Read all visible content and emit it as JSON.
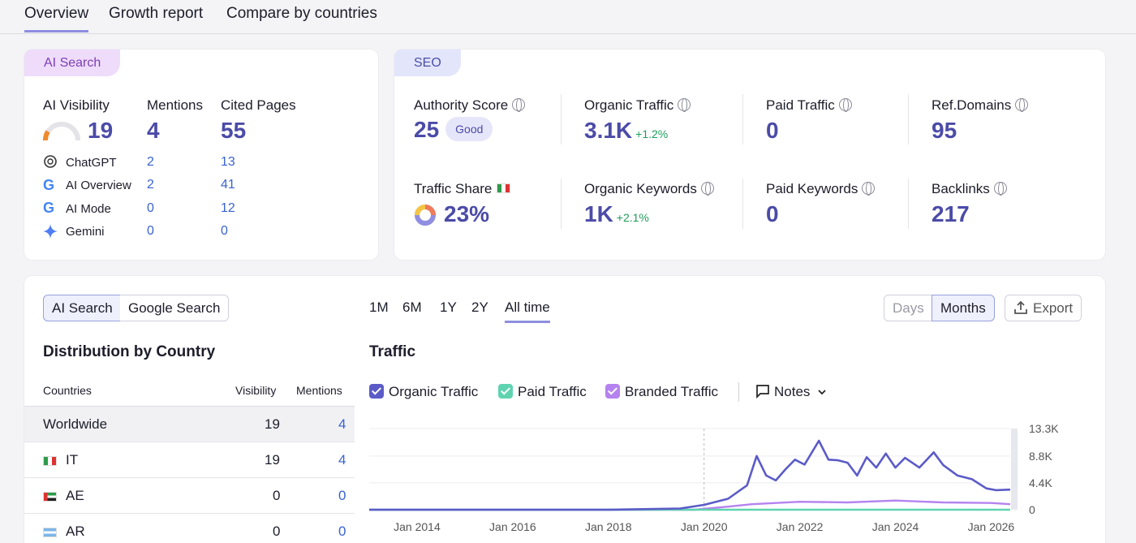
{
  "tabs": [
    "Overview",
    "Growth report",
    "Compare by countries"
  ],
  "ai_card": {
    "badge": "AI Search",
    "visibility_label": "AI Visibility",
    "visibility_value": "19",
    "mentions_label": "Mentions",
    "mentions_value": "4",
    "cited_label": "Cited Pages",
    "cited_value": "55",
    "sources": [
      {
        "name": "ChatGPT",
        "icon": "chatgpt-icon",
        "mentions": "2",
        "cited": "13"
      },
      {
        "name": "AI Overview",
        "icon": "google-icon",
        "mentions": "2",
        "cited": "41"
      },
      {
        "name": "AI Mode",
        "icon": "google-icon",
        "mentions": "0",
        "cited": "12"
      },
      {
        "name": "Gemini",
        "icon": "gemini-icon",
        "mentions": "0",
        "cited": "0"
      }
    ]
  },
  "seo_card": {
    "badge": "SEO",
    "authority_label": "Authority Score",
    "authority_value": "25",
    "authority_badge": "Good",
    "organic_traffic_label": "Organic Traffic",
    "organic_traffic_value": "3.1K",
    "organic_traffic_delta": "+1.2%",
    "paid_traffic_label": "Paid Traffic",
    "paid_traffic_value": "0",
    "refdomains_label": "Ref.Domains",
    "refdomains_value": "95",
    "traffic_share_label": "Traffic Share",
    "traffic_share_value": "23%",
    "organic_keywords_label": "Organic Keywords",
    "organic_keywords_value": "1K",
    "organic_keywords_delta": "+2.1%",
    "paid_keywords_label": "Paid Keywords",
    "paid_keywords_value": "0",
    "backlinks_label": "Backlinks",
    "backlinks_value": "217"
  },
  "bottom": {
    "source_toggle": [
      "AI Search",
      "Google Search"
    ],
    "periods": [
      "1M",
      "6M",
      "1Y",
      "2Y",
      "All time"
    ],
    "granularity": [
      "Days",
      "Months"
    ],
    "export_label": "Export",
    "distribution_title": "Distribution by Country",
    "columns": [
      "Countries",
      "Visibility",
      "Mentions"
    ],
    "rows": [
      {
        "country": "Worldwide",
        "flag": "",
        "visibility": "19",
        "mentions": "4"
      },
      {
        "country": "IT",
        "flag": "it-flag",
        "visibility": "19",
        "mentions": "4"
      },
      {
        "country": "AE",
        "flag": "ae-flag",
        "visibility": "0",
        "mentions": "0"
      },
      {
        "country": "AR",
        "flag": "ar-flag",
        "visibility": "0",
        "mentions": "0"
      }
    ],
    "traffic_title": "Traffic",
    "legend": [
      "Organic Traffic",
      "Paid Traffic",
      "Branded Traffic"
    ],
    "notes_label": "Notes"
  },
  "colors": {
    "organic": "#5b5bc8",
    "paid": "#5fd3b0",
    "branded": "#b583ef",
    "accent": "#8f8ee0"
  },
  "chart_data": {
    "type": "line",
    "title": "Traffic",
    "x_ticks": [
      "Jan 2014",
      "Jan 2016",
      "Jan 2018",
      "Jan 2020",
      "Jan 2022",
      "Jan 2024",
      "Jan 2026"
    ],
    "y_ticks": [
      "0",
      "4.4K",
      "8.8K",
      "13.3K"
    ],
    "ylim": [
      0,
      13300
    ],
    "grid": true,
    "series": [
      {
        "name": "Organic Traffic",
        "x": [
          2013.0,
          2018.0,
          2019.5,
          2020.0,
          2020.5,
          2020.9,
          2021.1,
          2021.3,
          2021.5,
          2021.7,
          2021.9,
          2022.1,
          2022.4,
          2022.6,
          2022.8,
          2023.0,
          2023.2,
          2023.4,
          2023.6,
          2023.8,
          2024.0,
          2024.2,
          2024.5,
          2024.8,
          2025.0,
          2025.3,
          2025.6,
          2025.9,
          2026.1,
          2026.4
        ],
        "y": [
          0,
          0,
          200,
          800,
          1800,
          4000,
          8800,
          5600,
          4800,
          6600,
          8200,
          7400,
          11300,
          8200,
          8100,
          7700,
          5600,
          8600,
          6900,
          9200,
          6900,
          8500,
          6900,
          9400,
          7300,
          5600,
          5000,
          3500,
          3200,
          3300
        ]
      },
      {
        "name": "Paid Traffic",
        "x": [
          2013.0,
          2026.4
        ],
        "y": [
          0,
          0
        ]
      },
      {
        "name": "Branded Traffic",
        "x": [
          2013.0,
          2019.8,
          2020.5,
          2021.0,
          2022.0,
          2023.0,
          2024.0,
          2025.0,
          2026.0,
          2026.4
        ],
        "y": [
          0,
          0,
          500,
          900,
          1300,
          1200,
          1500,
          1200,
          1100,
          900
        ]
      }
    ]
  }
}
